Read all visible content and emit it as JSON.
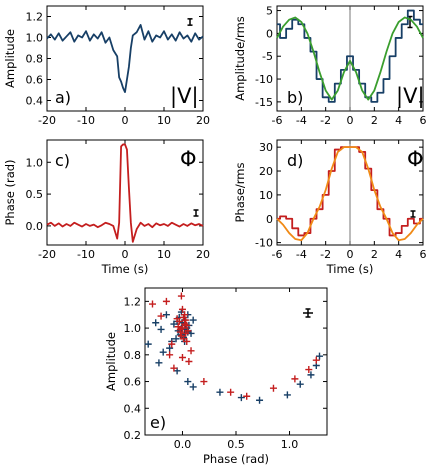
{
  "chart_data": [
    {
      "panel": "a)",
      "type": "line",
      "symbol": "|V|",
      "xlabel": "",
      "ylabel": "Amplitude",
      "xlim": [
        -20,
        20
      ],
      "ylim": [
        0.3,
        1.3
      ],
      "xticks": [
        "-20",
        "-10",
        "0",
        "10",
        "20"
      ],
      "xtick_values": [
        -20,
        -10,
        0,
        10,
        20
      ],
      "yticks": [
        "0.4",
        "0.6",
        "0.8",
        "1.0",
        "1.2"
      ],
      "ytick_values": [
        0.4,
        0.6,
        0.8,
        1.0,
        1.2
      ],
      "errorbar_halfwidth": 0.03,
      "series": [
        {
          "color": "#173f66",
          "step": false,
          "x": [
            -20,
            -19,
            -18,
            -17,
            -16,
            -15,
            -14,
            -13,
            -12,
            -11,
            -10,
            -9,
            -8,
            -7,
            -6,
            -5,
            -4,
            -3,
            -2,
            -1.5,
            -1,
            -0.5,
            0,
            0.5,
            1,
            1.5,
            2,
            3,
            4,
            5,
            6,
            7,
            8,
            9,
            10,
            11,
            12,
            13,
            14,
            15,
            16,
            17,
            18,
            19,
            20
          ],
          "y": [
            0.99,
            1.03,
            0.98,
            1.04,
            0.97,
            1.01,
            1.05,
            0.96,
            1.02,
            1.0,
            1.06,
            0.97,
            1.03,
            0.99,
            1.05,
            0.95,
            1.0,
            0.88,
            0.82,
            0.62,
            0.58,
            0.52,
            0.48,
            0.6,
            0.72,
            0.9,
            1.02,
            1.05,
            1.12,
            0.98,
            1.06,
            0.96,
            1.02,
            1.0,
            1.06,
            0.98,
            1.03,
            0.97,
            1.05,
            0.99,
            1.02,
            0.96,
            1.04,
            0.98,
            1.01
          ]
        }
      ]
    },
    {
      "panel": "b)",
      "type": "line",
      "symbol": "|V|",
      "xlabel": "",
      "ylabel": "Amplitude/rms",
      "xlim": [
        -6,
        6
      ],
      "ylim": [
        -17,
        6
      ],
      "xticks": [
        "-6",
        "-4",
        "-2",
        "0",
        "2",
        "4",
        "6"
      ],
      "xtick_values": [
        -6,
        -4,
        -2,
        0,
        2,
        4,
        6
      ],
      "yticks": [
        "-15",
        "-10",
        "-5",
        "0",
        "5"
      ],
      "ytick_values": [
        -15,
        -10,
        -5,
        0,
        5
      ],
      "errorbar_halfwidth": 1.2,
      "series": [
        {
          "color": "#173f66",
          "step": true,
          "x": [
            -6,
            -5.5,
            -5,
            -4.5,
            -4,
            -3.5,
            -3,
            -2.5,
            -2,
            -1.5,
            -1,
            -0.5,
            0,
            0.5,
            1,
            1.5,
            2,
            2.5,
            3,
            3.5,
            4,
            4.5,
            5,
            5.5,
            6
          ],
          "y": [
            2,
            -1,
            1,
            3,
            2,
            -1,
            -4,
            -10,
            -14,
            -15,
            -11,
            -8,
            -5,
            -8,
            -11,
            -14,
            -15,
            -13,
            -10,
            -5,
            -1,
            2,
            5,
            3,
            2
          ]
        },
        {
          "color": "#3a9e2e",
          "step": false,
          "x": [
            -6,
            -5.5,
            -5,
            -4.5,
            -4,
            -3.5,
            -3,
            -2.5,
            -2,
            -1.5,
            -1,
            -0.5,
            0,
            0.5,
            1,
            1.5,
            2,
            2.5,
            3,
            3.5,
            4,
            4.5,
            5,
            5.5,
            6
          ],
          "y": [
            -1,
            1.5,
            3,
            3.5,
            2.5,
            0,
            -4,
            -8.5,
            -12.5,
            -14.5,
            -12.5,
            -8.5,
            -6,
            -8.5,
            -12.5,
            -14.5,
            -12.5,
            -8.5,
            -4,
            0,
            2.5,
            3.5,
            3,
            1.5,
            -1
          ]
        }
      ]
    },
    {
      "panel": "c)",
      "type": "line",
      "symbol": "Φ",
      "xlabel": "Time (s)",
      "ylabel": "Phase (rad)",
      "xlim": [
        -20,
        20
      ],
      "ylim": [
        -0.3,
        1.35
      ],
      "xticks": [
        "-20",
        "-10",
        "0",
        "10",
        "20"
      ],
      "xtick_values": [
        -20,
        -10,
        0,
        10,
        20
      ],
      "yticks": [
        "0.0",
        "0.5",
        "1.0"
      ],
      "ytick_values": [
        0,
        0.5,
        1.0
      ],
      "errorbar_halfwidth": 0.03,
      "series": [
        {
          "color": "#c41e1e",
          "step": false,
          "x": [
            -20,
            -19,
            -18,
            -17,
            -16,
            -15,
            -14,
            -13,
            -12,
            -11,
            -10,
            -9,
            -8,
            -7,
            -6,
            -5,
            -4,
            -3,
            -2,
            -1.5,
            -1,
            -0.5,
            0,
            0.5,
            1,
            1.5,
            2,
            3,
            4,
            5,
            6,
            7,
            8,
            9,
            10,
            11,
            12,
            13,
            14,
            15,
            16,
            17,
            18,
            19,
            20
          ],
          "y": [
            0.02,
            0.05,
            0.0,
            0.04,
            -0.01,
            0.03,
            0.0,
            0.05,
            0.02,
            -0.01,
            0.03,
            0.0,
            0.02,
            -0.02,
            0.01,
            0.05,
            0.03,
            0.0,
            -0.2,
            0.05,
            1.25,
            1.28,
            1.28,
            1.2,
            0.6,
            0.05,
            -0.25,
            -0.05,
            0.05,
            0.0,
            0.03,
            -0.02,
            0.04,
            0.01,
            0.03,
            0.0,
            0.05,
            0.02,
            -0.01,
            0.03,
            0.0,
            0.04,
            0.01,
            0.03,
            0.0
          ]
        }
      ]
    },
    {
      "panel": "d)",
      "type": "line",
      "symbol": "Φ",
      "xlabel": "Time (s)",
      "ylabel": "Phase/rms",
      "xlim": [
        -6,
        6
      ],
      "ylim": [
        -11,
        33
      ],
      "xticks": [
        "-6",
        "-4",
        "-2",
        "0",
        "2",
        "4",
        "6"
      ],
      "xtick_values": [
        -6,
        -4,
        -2,
        0,
        2,
        4,
        6
      ],
      "yticks": [
        "-10",
        "0",
        "10",
        "20",
        "30"
      ],
      "ytick_values": [
        -10,
        0,
        10,
        20,
        30
      ],
      "errorbar_halfwidth": 1.2,
      "series": [
        {
          "color": "#c41e1e",
          "step": true,
          "x": [
            -6,
            -5.5,
            -5,
            -4.5,
            -4,
            -3.5,
            -3,
            -2.5,
            -2,
            -1.5,
            -1,
            -0.5,
            0,
            0.5,
            1,
            1.5,
            2,
            2.5,
            3,
            3.5,
            4,
            4.5,
            5,
            5.5,
            6
          ],
          "y": [
            0,
            1,
            0,
            -4,
            -7,
            -6,
            0,
            4,
            10,
            20,
            29,
            30,
            30,
            30,
            28,
            21,
            12,
            4,
            0,
            -7,
            -6,
            -3,
            0,
            -2,
            0
          ]
        },
        {
          "color": "#f08a16",
          "step": false,
          "x": [
            -6,
            -5.5,
            -5,
            -4.5,
            -4,
            -3.5,
            -3,
            -2.5,
            -2,
            -1.5,
            -1,
            -0.5,
            0,
            0.5,
            1,
            1.5,
            2,
            2.5,
            3,
            3.5,
            4,
            4.5,
            5,
            5.5,
            6
          ],
          "y": [
            0,
            -2.5,
            -6,
            -8.5,
            -9,
            -6,
            0,
            5,
            12,
            21,
            28,
            30,
            30,
            30,
            28,
            21,
            12,
            5,
            0,
            -6,
            -9,
            -8.5,
            -6,
            -2.5,
            0
          ]
        }
      ]
    },
    {
      "panel": "e)",
      "type": "scatter",
      "xlabel": "Phase (rad)",
      "ylabel": "Amplitude",
      "xlim": [
        -0.35,
        1.35
      ],
      "ylim": [
        0.2,
        1.3
      ],
      "xticks": [
        "0.0",
        "0.5",
        "1.0"
      ],
      "xtick_values": [
        0,
        0.5,
        1.0
      ],
      "yticks": [
        "0.2",
        "0.4",
        "0.6",
        "0.8",
        "1.0",
        "1.2"
      ],
      "ytick_values": [
        0.2,
        0.4,
        0.6,
        0.8,
        1.0,
        1.2
      ],
      "errorbar_halfwidth": 0.03,
      "series": [
        {
          "color": "#173f66",
          "x": [
            -0.01,
            0.03,
            -0.04,
            0.05,
            0.0,
            -0.02,
            0.02,
            0.04,
            -0.03,
            0.01,
            0.06,
            -0.05,
            0.02,
            -0.01,
            0.03,
            -0.06,
            0.05,
            -0.08,
            0.08,
            -0.1,
            0.1,
            -0.15,
            -0.25,
            -0.32,
            -0.22,
            -0.18,
            -0.12,
            -0.05,
            0.05,
            0.1,
            0.35,
            0.55,
            0.72,
            0.98,
            1.1,
            1.2,
            1.25,
            1.28,
            -0.2,
            0.02
          ],
          "y": [
            1.0,
            1.02,
            0.98,
            0.97,
            1.04,
            0.95,
            1.06,
            1.0,
            1.08,
            0.93,
            1.02,
            1.05,
            0.96,
            1.12,
            0.99,
            0.92,
            1.1,
            1.03,
            0.96,
            0.9,
            1.06,
            1.1,
            1.04,
            0.88,
            0.74,
            0.82,
            0.85,
            0.68,
            0.6,
            0.56,
            0.52,
            0.48,
            0.46,
            0.5,
            0.58,
            0.65,
            0.72,
            0.79,
            0.99,
            0.9
          ]
        },
        {
          "color": "#c41e1e",
          "x": [
            0.0,
            0.02,
            -0.02,
            0.03,
            -0.03,
            0.01,
            -0.01,
            0.04,
            -0.04,
            0.02,
            0.0,
            -0.02,
            0.03,
            0.05,
            -0.05,
            0.01,
            -0.15,
            -0.2,
            -0.28,
            -0.08,
            -0.12,
            0.06,
            0.2,
            0.45,
            0.6,
            0.85,
            1.05,
            1.18,
            1.25,
            -0.1,
            0.0,
            0.04,
            0.08,
            -0.01
          ],
          "y": [
            1.0,
            1.03,
            0.99,
            0.96,
            1.05,
            1.08,
            0.94,
            1.02,
            1.01,
            1.1,
            1.14,
            0.97,
            1.06,
            0.98,
            1.07,
            0.92,
            1.2,
            1.09,
            1.18,
            0.7,
            0.8,
            0.75,
            0.6,
            0.52,
            0.49,
            0.55,
            0.62,
            0.69,
            0.76,
            0.88,
            0.78,
            0.9,
            0.83,
            1.24
          ]
        }
      ]
    }
  ]
}
